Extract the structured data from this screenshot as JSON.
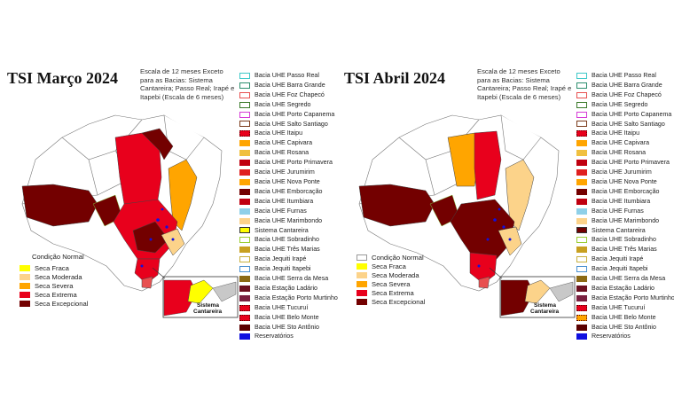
{
  "panels": [
    {
      "title": "TSI Março 2024",
      "note": "Escala de 12 meses Exceto para as Bacias: Sistema Cantareira; Passo Real; Irapé e Itapebi (Escala de 6 meses)",
      "inset_label": [
        "Sistema",
        "Cantareira"
      ]
    },
    {
      "title": "TSI Abril 2024",
      "note": "Escala de 12 meses Exceto para as Bacias: Sistema Cantareira; Passo Real; Irapé e Itapebi (Escala de 6 meses)",
      "inset_label": [
        "Sistema",
        "Cantareira"
      ]
    }
  ],
  "condition_legend": {
    "title": "Condição Normal",
    "items": [
      {
        "label": "Seca Fraca",
        "color": "#ffff00"
      },
      {
        "label": "Seca Moderada",
        "color": "#fcd38a"
      },
      {
        "label": "Seca Severa",
        "color": "#ffa500"
      },
      {
        "label": "Seca Extrema",
        "color": "#e8001c"
      },
      {
        "label": "Seca Excepcional",
        "color": "#730000"
      }
    ]
  },
  "basin_legend": [
    {
      "label": "Bacia UHE Passo Real",
      "color": "#3dc8c8"
    },
    {
      "label": "Bacia UHE Barra Grande",
      "color": "#2d8f6e"
    },
    {
      "label": "Bacia UHE Foz Chapecó",
      "color": "#e85050"
    },
    {
      "label": "Bacia UHE Segredo",
      "color": "#3b7a2a"
    },
    {
      "label": "Bacia UHE Porto Capanema",
      "color": "#d63ad6"
    },
    {
      "label": "Bacia UHE Salto Santiago",
      "color": "#7a3a1a"
    },
    {
      "label": "Bacia UHE Itaipu",
      "color": "#e8001c"
    },
    {
      "label": "Bacia UHE Capivara",
      "color": "#ffa500"
    },
    {
      "label": "Bacia UHE Rosana",
      "color": "#f0c040"
    },
    {
      "label": "Bacia UHE Porto Primavera",
      "color": "#c00010"
    },
    {
      "label": "Bacia UHE Jurumirim",
      "color": "#e02020"
    },
    {
      "label": "Bacia UHE Nova Ponte",
      "color": "#ffa500"
    },
    {
      "label": "Bacia UHE Emborcação",
      "color": "#730000"
    },
    {
      "label": "Bacia UHE Itumbiara",
      "color": "#c00010"
    },
    {
      "label": "Bacia UHE Furnas",
      "color": "#8fd0e8"
    },
    {
      "label": "Bacia UHE Marimbondo",
      "color": "#fcd38a"
    },
    {
      "label": "Sistema Cantareira",
      "color": "#ffff00"
    },
    {
      "label": "Bacia UHE Sobradinho",
      "color": "#9acd32"
    },
    {
      "label": "Bacia UHE Três Marias",
      "color": "#c8a020"
    },
    {
      "label": "Bacia Jequiti Irapé",
      "color": "#f0e68c"
    },
    {
      "label": "Bacia Jequiti Itapebi",
      "color": "#4a90d0"
    },
    {
      "label": "Bacia UHE Serra da Mesa",
      "color": "#8b6914"
    },
    {
      "label": "Bacia Estação Ladário",
      "color": "#6b1020"
    },
    {
      "label": "Bacia Estação Porto Murtinho",
      "color": "#7a2040"
    },
    {
      "label": "Bacia UHE Tucuruí",
      "color": "#e8001c"
    },
    {
      "label": "Bacia UHE Belo Monte",
      "color": "#e8001c"
    },
    {
      "label": "Bacia UHE Sto Antônio",
      "color": "#5a0000"
    },
    {
      "label": "Reservatórios",
      "color": "#1010e0"
    }
  ]
}
